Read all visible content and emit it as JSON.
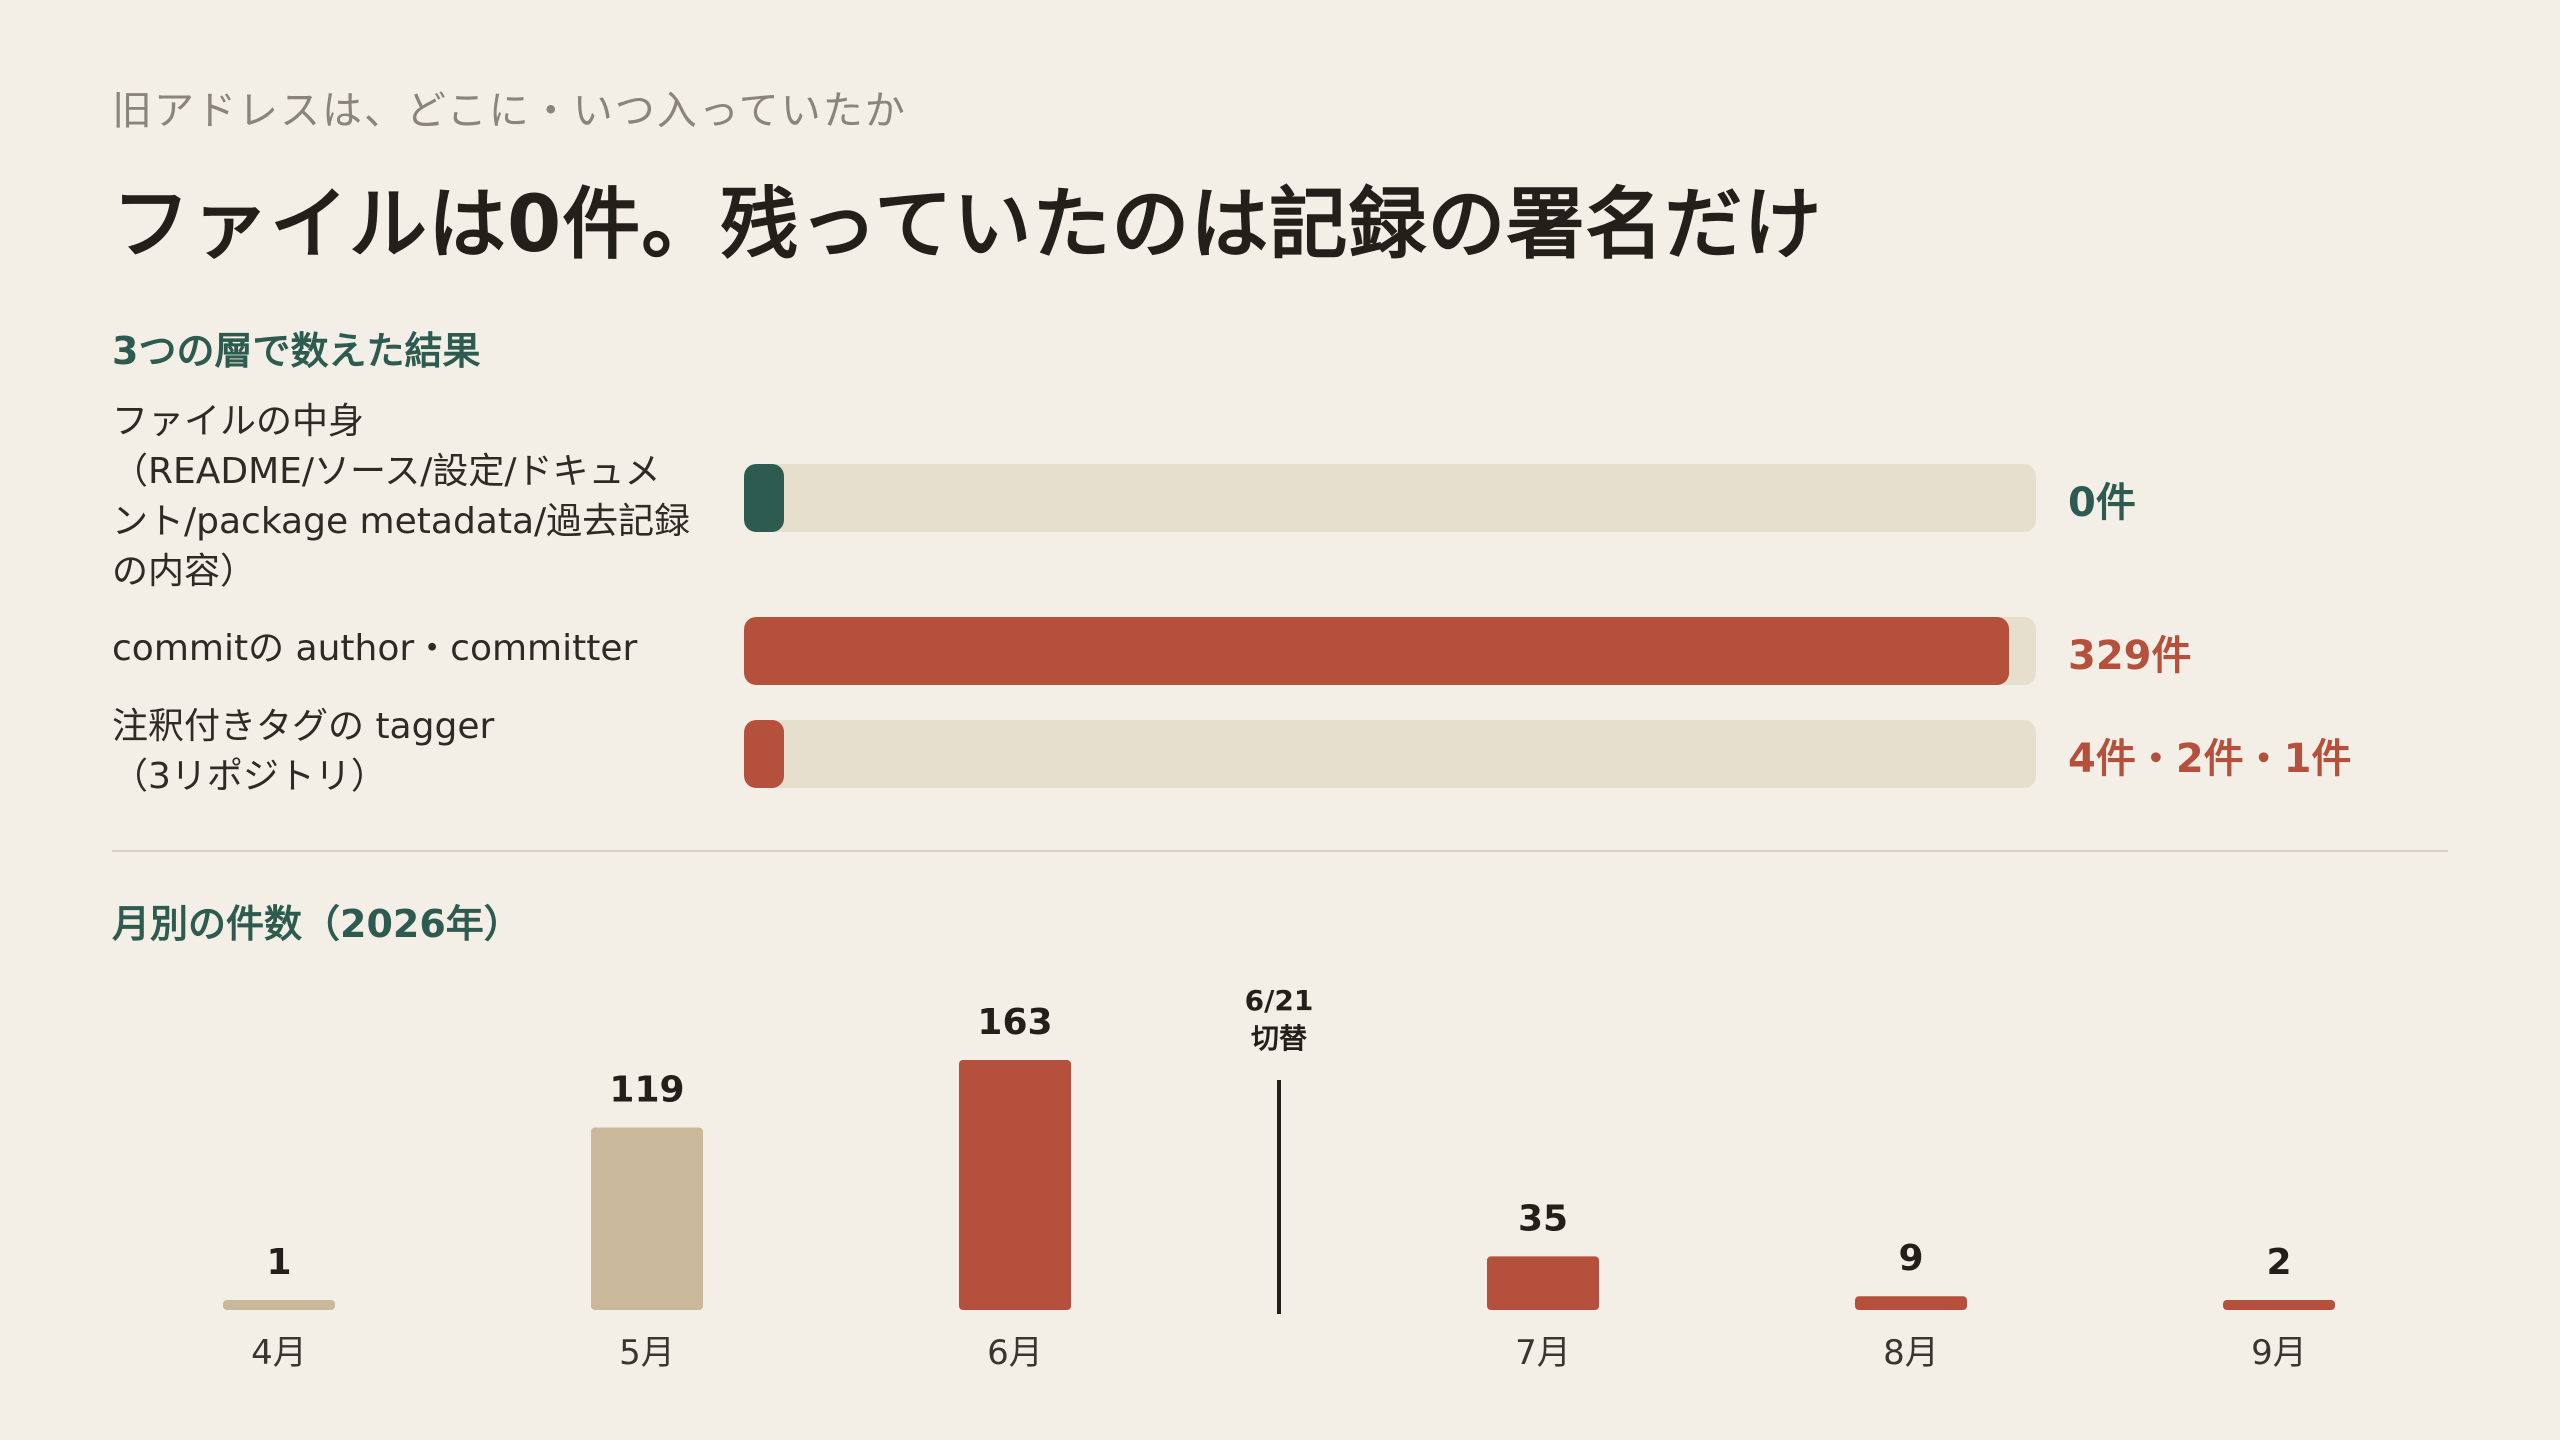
{
  "eyebrow": "旧アドレスは、どこに・いつ入っていたか",
  "headline": "ファイルは0件。残っていたのは記録の署名だけ",
  "colors": {
    "background": "#f3efe6",
    "accent_green": "#2e5b50",
    "accent_red": "#b5503c",
    "bar_neutral": "#c9b89a",
    "track": "#e6dfce"
  },
  "chart_data": [
    {
      "type": "bar",
      "orientation": "horizontal",
      "title": "3つの層で数えた結果",
      "categories": [
        "ファイルの中身（README/ソース/設定/ドキュメント/package metadata/過去記録の内容）",
        "commitの author・committer",
        "注釈付きタグの tagger（3リポジトリ）"
      ],
      "category_lines": [
        [
          "ファイルの中身",
          "（README/ソース/設定/ドキュメ",
          "ント/package metadata/過去記録",
          "の内容）"
        ],
        [
          "commitの author・committer"
        ],
        [
          "注釈付きタグの tagger",
          "（3リポジトリ）"
        ]
      ],
      "values": [
        0,
        329,
        7
      ],
      "value_labels": [
        "0件",
        "329件",
        "4件・2件・1件"
      ],
      "bar_colors": [
        "#2e5b50",
        "#b5503c",
        "#b5503c"
      ],
      "xlim": [
        0,
        336
      ]
    },
    {
      "type": "bar",
      "title": "月別の件数（2026年）",
      "categories": [
        "4月",
        "5月",
        "6月",
        "7月",
        "8月",
        "9月"
      ],
      "values": [
        1,
        119,
        163,
        35,
        9,
        2
      ],
      "value_labels": [
        "1",
        "119",
        "163",
        "35",
        "9",
        "2"
      ],
      "bar_colors": [
        "#c9b89a",
        "#c9b89a",
        "#b5503c",
        "#b5503c",
        "#b5503c",
        "#b5503c"
      ],
      "ylim": [
        0,
        163
      ],
      "annotation": {
        "label_lines": [
          "6/21",
          "切替"
        ],
        "between": [
          "6月",
          "7月"
        ]
      }
    }
  ]
}
